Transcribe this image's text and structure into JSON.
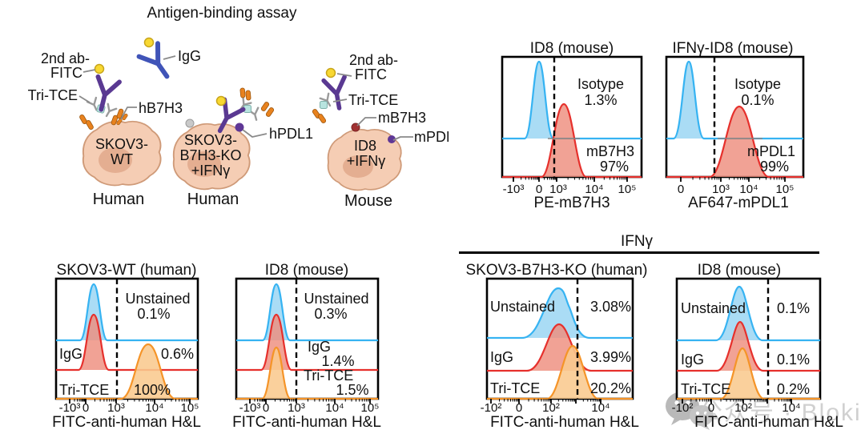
{
  "schematic": {
    "title": "Antigen-binding assay",
    "labels": {
      "ab2_line1": "2nd ab-",
      "ab2_line2": "FITC",
      "tri_tce": "Tri-TCE",
      "igg": "IgG",
      "hb7h3": "hB7H3",
      "hpdl1": "hPDL1",
      "mb7h3": "mB7H3",
      "mpdl1": "mPDL1"
    },
    "cells": [
      {
        "name_lines": [
          "SKOV3-",
          "WT"
        ],
        "species": "Human"
      },
      {
        "name_lines": [
          "SKOV3-",
          "B7H3-KO",
          "+IFNγ"
        ],
        "species": "Human"
      },
      {
        "name_lines": [
          "ID8",
          "+IFNγ"
        ],
        "species": "Mouse"
      }
    ]
  },
  "ifng_group_label": "IFNγ",
  "watermark": {
    "text": "公众号 · Bloki"
  },
  "panels": {
    "top1": {
      "title": "ID8 (mouse)",
      "xlabel": "PE-mB7H3",
      "ticks": [
        "-10³",
        "0",
        "10³",
        "10⁴",
        "10⁵"
      ],
      "pop1": {
        "label": "Isotype",
        "value": "1.3%"
      },
      "pop2": {
        "label": "mB7H3",
        "value": "97%"
      }
    },
    "top2": {
      "title": "IFNγ-ID8 (mouse)",
      "xlabel": "AF647-mPDL1",
      "ticks": [
        "0",
        "10³",
        "10⁴",
        "10⁵"
      ],
      "pop1": {
        "label": "Isotype",
        "value": "0.1%"
      },
      "pop2": {
        "label": "mPDL1",
        "value": "99%"
      }
    },
    "bot1": {
      "title": "SKOV3-WT (human)",
      "xlabel": "FITC-anti-human H&L",
      "ticks": [
        "-10³",
        "0",
        "10³",
        "10⁴",
        "10⁵"
      ],
      "rows": [
        {
          "label": "Unstained",
          "value": "0.1%"
        },
        {
          "label": "IgG",
          "value": "0.6%"
        },
        {
          "label": "Tri-TCE",
          "value": "100%"
        }
      ]
    },
    "bot2": {
      "title": "ID8 (mouse)",
      "xlabel": "FITC-anti-human H&L",
      "ticks": [
        "-10³",
        "0",
        "10³",
        "10⁴",
        "10⁵"
      ],
      "rows": [
        {
          "label": "Unstained",
          "value": "0.3%"
        },
        {
          "label": "IgG",
          "value": "1.4%"
        },
        {
          "label": "Tri-TCE",
          "value": "1.5%"
        }
      ]
    },
    "bot3": {
      "title": "SKOV3-B7H3-KO (human)",
      "xlabel": "FITC-anti-human H&L",
      "ticks": [
        "-10²",
        "0",
        "10²",
        "10⁴"
      ],
      "rows": [
        {
          "label": "Unstained",
          "value": "3.08%"
        },
        {
          "label": "IgG",
          "value": "3.99%"
        },
        {
          "label": "Tri-TCE",
          "value": "20.2%"
        }
      ]
    },
    "bot4": {
      "title": "ID8 (mouse)",
      "xlabel": "FITC-anti-human H&L",
      "ticks": [
        "-10²",
        "0",
        "10²",
        "10⁴"
      ],
      "rows": [
        {
          "label": "Unstained",
          "value": "0.1%"
        },
        {
          "label": "IgG",
          "value": "0.1%"
        },
        {
          "label": "Tri-TCE",
          "value": "0.2%"
        }
      ]
    }
  },
  "colors": {
    "histogram_blue_stroke": "#36b3f2",
    "histogram_blue_fill": "#aadcf5",
    "histogram_red_stroke": "#e6302c",
    "histogram_red_fill": "#ee8d7e",
    "histogram_orange_stroke": "#f59428",
    "histogram_orange_fill": "#f9c98e",
    "cell_fill": "#f5cdb4",
    "antibody_purple": "#5a3992",
    "igg_blue": "#4054b8",
    "fitc_yellow": "#f8d832",
    "watermark_grey": "#c8c8c8"
  },
  "chart_data": [
    {
      "type": "area",
      "title": "ID8 (mouse)",
      "xlabel": "PE-mB7H3",
      "x_ticks": [
        "-10³",
        "0",
        "10³",
        "10⁴",
        "10⁵"
      ],
      "x_scale": "biexponential",
      "gate": "dashed vertical line at ~10³",
      "series": [
        {
          "name": "Isotype",
          "color": "#36b3f2",
          "peak_x": "~0",
          "percent_positive": 1.3
        },
        {
          "name": "mB7H3",
          "color": "#e6302c",
          "peak_x": "~2×10³",
          "percent_positive": 97
        }
      ]
    },
    {
      "type": "area",
      "title": "IFNγ-ID8 (mouse)",
      "xlabel": "AF647-mPDL1",
      "x_ticks": [
        "0",
        "10³",
        "10⁴",
        "10⁵"
      ],
      "x_scale": "biexponential",
      "gate": "dashed vertical line below 10³",
      "series": [
        {
          "name": "Isotype",
          "color": "#36b3f2",
          "peak_x": "~0",
          "percent_positive": 0.1
        },
        {
          "name": "mPDL1",
          "color": "#e6302c",
          "peak_x": "~3×10³",
          "percent_positive": 99
        }
      ]
    },
    {
      "type": "area",
      "title": "SKOV3-WT (human)",
      "xlabel": "FITC-anti-human H&L",
      "x_ticks": [
        "-10³",
        "0",
        "10³",
        "10⁴",
        "10⁵"
      ],
      "x_scale": "biexponential",
      "gate": "dashed vertical line at ~10³",
      "series": [
        {
          "name": "Unstained",
          "color": "#36b3f2",
          "peak_x": "~0",
          "percent_positive": 0.1
        },
        {
          "name": "IgG",
          "color": "#e6302c",
          "peak_x": "~0",
          "percent_positive": 0.6
        },
        {
          "name": "Tri-TCE",
          "color": "#f59428",
          "peak_x": "~10⁴",
          "percent_positive": 100
        }
      ]
    },
    {
      "type": "area",
      "title": "ID8 (mouse)",
      "xlabel": "FITC-anti-human H&L",
      "x_ticks": [
        "-10³",
        "0",
        "10³",
        "10⁴",
        "10⁵"
      ],
      "x_scale": "biexponential",
      "gate": "dashed vertical line at ~10³",
      "series": [
        {
          "name": "Unstained",
          "color": "#36b3f2",
          "peak_x": "~0",
          "percent_positive": 0.3
        },
        {
          "name": "IgG",
          "color": "#e6302c",
          "peak_x": "~0",
          "percent_positive": 1.4
        },
        {
          "name": "Tri-TCE",
          "color": "#f59428",
          "peak_x": "~0",
          "percent_positive": 1.5
        }
      ]
    },
    {
      "type": "area",
      "title": "SKOV3-B7H3-KO (human)",
      "group": "IFNγ",
      "xlabel": "FITC-anti-human H&L",
      "x_ticks": [
        "-10²",
        "0",
        "10²",
        "10⁴"
      ],
      "x_scale": "biexponential",
      "gate": "dashed vertical line at ~10³",
      "series": [
        {
          "name": "Unstained",
          "color": "#36b3f2",
          "peak_x": "~10²",
          "percent_positive": 3.08
        },
        {
          "name": "IgG",
          "color": "#e6302c",
          "peak_x": "~10²",
          "percent_positive": 3.99
        },
        {
          "name": "Tri-TCE",
          "color": "#f59428",
          "peak_x": "~5×10²",
          "percent_positive": 20.2
        }
      ]
    },
    {
      "type": "area",
      "title": "ID8 (mouse)",
      "group": "IFNγ",
      "xlabel": "FITC-anti-human H&L",
      "x_ticks": [
        "-10²",
        "0",
        "10²",
        "10⁴"
      ],
      "x_scale": "biexponential",
      "gate": "dashed vertical line at ~10³",
      "series": [
        {
          "name": "Unstained",
          "color": "#36b3f2",
          "peak_x": "~10²",
          "percent_positive": 0.1
        },
        {
          "name": "IgG",
          "color": "#e6302c",
          "peak_x": "~10²",
          "percent_positive": 0.1
        },
        {
          "name": "Tri-TCE",
          "color": "#f59428",
          "peak_x": "~10²",
          "percent_positive": 0.2
        }
      ]
    }
  ]
}
